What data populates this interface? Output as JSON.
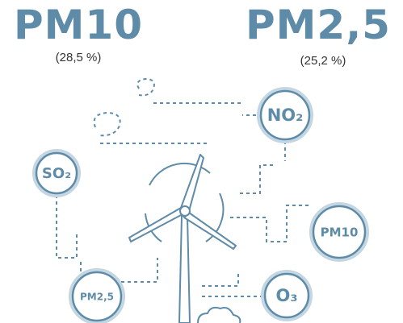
{
  "headline": [
    {
      "label": "PM10",
      "share": "(28,5 %)"
    },
    {
      "label": "PM2,5",
      "share": "(25,2 %)"
    }
  ],
  "pollutants": [
    "NO₂",
    "SO₂",
    "PM10",
    "PM2,5",
    "O₃"
  ]
}
